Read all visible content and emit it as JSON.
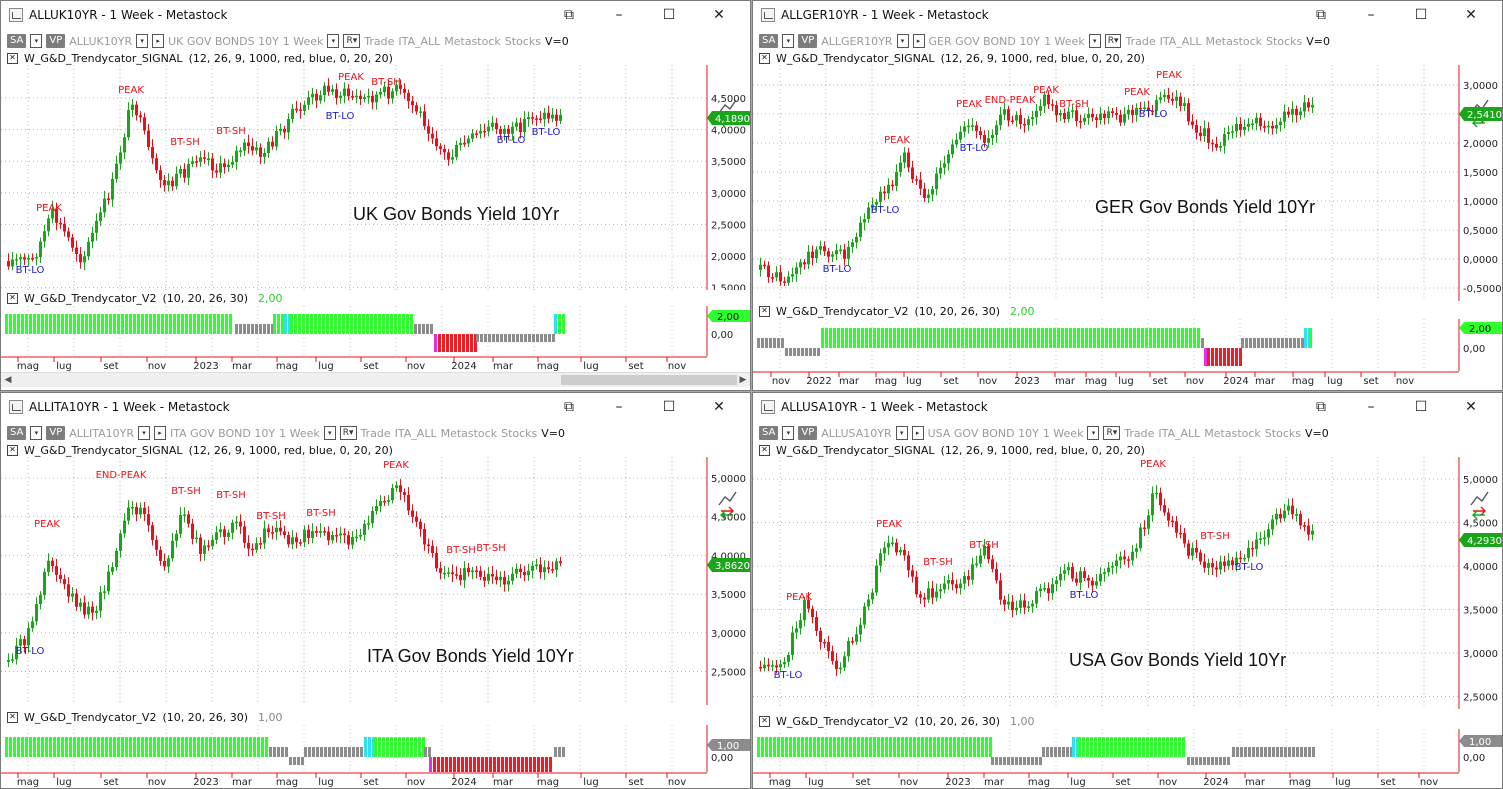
{
  "toolbar_common": {
    "sa": "SA",
    "vp": "VP",
    "period": "1 Week",
    "trade": "Trade",
    "list": "ITA_ALL",
    "metastock": "Metastock",
    "stocks": "Stocks",
    "v0": "V=0",
    "r_btn": "R▾"
  },
  "windows": [
    {
      "title": "ALLUK10YR - 1 Week - Metastock",
      "symbol": "ALLUK10YR",
      "security": "UK GOV BONDS 10Y",
      "indicator1": "W_G&D_Trendycator_SIGNAL",
      "indicator1_params": "(12, 26, 9, 1000, red, blue, 0, 20, 20)",
      "indicator2": "W_G&D_Trendycator_V2",
      "indicator2_params": "(10, 20, 26, 30)",
      "indicator2_value": "2,00",
      "label": "UK Gov Bonds Yield 10Yr",
      "last_price": "4,1890",
      "ind2_flag": "2,00",
      "ind2_zero": "0,00",
      "price_ticks": [
        "4,5000",
        "4,0000",
        "3,5000",
        "3,0000",
        "2,5000",
        "2,0000",
        "1,5000"
      ],
      "x_labels": [
        "mag",
        "lug",
        "set",
        "nov",
        "2023",
        "mar",
        "mag",
        "lug",
        "set",
        "nov",
        "2024",
        "mar",
        "mag",
        "lug",
        "set",
        "nov"
      ],
      "signals": [
        "PEAK",
        "PEAK",
        "BT-SH",
        "BT-SH",
        "PEAK",
        "BT-SH",
        "BT-LO",
        "BT-LO",
        "BT-LO",
        "BT-LO"
      ]
    },
    {
      "title": "ALLGER10YR - 1 Week - Metastock",
      "symbol": "ALLGER10YR",
      "security": "GER GOV BOND 10Y",
      "indicator1": "W_G&D_Trendycator_SIGNAL",
      "indicator1_params": "(12, 26, 9, 1000, red, blue, 0, 20, 20)",
      "indicator2": "W_G&D_Trendycator_V2",
      "indicator2_params": "(10, 20, 26, 30)",
      "indicator2_value": "2,00",
      "label": "GER Gov Bonds Yield 10Yr",
      "last_price": "2,5410",
      "ind2_flag": "2,00",
      "ind2_zero": "0,00",
      "price_ticks": [
        "3,0000",
        "2,5000",
        "2,0000",
        "1,5000",
        "1,0000",
        "0,5000",
        "0,0000",
        "-0,5000"
      ],
      "x_labels": [
        "nov",
        "2022",
        "mar",
        "mag",
        "lug",
        "set",
        "nov",
        "2023",
        "mar",
        "mag",
        "lug",
        "set",
        "nov",
        "2024",
        "mar",
        "mag",
        "lug",
        "set",
        "nov"
      ],
      "signals": [
        "PEAK",
        "PEAK",
        "END-PEAK",
        "PEAK",
        "BT-SH",
        "PEAK",
        "PEAK",
        "BT-LO",
        "BT-LO",
        "BT-LO",
        "BT-LO"
      ]
    },
    {
      "title": "ALLITA10YR - 1 Week - Metastock",
      "symbol": "ALLITA10YR",
      "security": "ITA GOV BOND 10Y",
      "indicator1": "W_G&D_Trendycator_SIGNAL",
      "indicator1_params": "(12, 26, 9, 1000, red, blue, 0, 20, 20)",
      "indicator2": "W_G&D_Trendycator_V2",
      "indicator2_params": "(10, 20, 26, 30)",
      "indicator2_value": "1,00",
      "label": "ITA Gov Bonds Yield 10Yr",
      "last_price": "3,8620",
      "ind2_flag": "1,00",
      "ind2_zero": "0,00",
      "price_ticks": [
        "5,0000",
        "4,5000",
        "4,0000",
        "3,5000",
        "3,0000",
        "2,5000"
      ],
      "x_labels": [
        "mag",
        "lug",
        "set",
        "nov",
        "2023",
        "mar",
        "mag",
        "lug",
        "set",
        "nov",
        "2024",
        "mar",
        "mag",
        "lug",
        "set",
        "nov"
      ],
      "signals": [
        "PEAK",
        "END-PEAK",
        "BT-SH",
        "BT-SH",
        "BT-SH",
        "BT-SH",
        "PEAK",
        "BT-SH",
        "BT-SH",
        "BT-LO"
      ]
    },
    {
      "title": "ALLUSA10YR - 1 Week - Metastock",
      "symbol": "ALLUSA10YR",
      "security": "USA GOV BOND 10Y",
      "indicator1": "W_G&D_Trendycator_SIGNAL",
      "indicator1_params": "(12, 26, 9, 1000, red, blue, 0, 20, 20)",
      "indicator2": "W_G&D_Trendycator_V2",
      "indicator2_params": "(10, 20, 26, 30)",
      "indicator2_value": "1,00",
      "label": "USA Gov Bonds Yield 10Yr",
      "last_price": "4,2930",
      "ind2_flag": "1,00",
      "ind2_zero": "0,00",
      "price_ticks": [
        "5,0000",
        "4,5000",
        "4,0000",
        "3,5000",
        "3,0000",
        "2,5000"
      ],
      "x_labels": [
        "mag",
        "lug",
        "set",
        "nov",
        "2023",
        "mar",
        "mag",
        "lug",
        "set",
        "nov",
        "2024",
        "mar",
        "mag",
        "lug",
        "set",
        "nov"
      ],
      "signals": [
        "PEAK",
        "PEAK",
        "BT-SH",
        "BT-SH",
        "PEAK",
        "BT-SH",
        "BT-LO",
        "BT-LO",
        "BT-LO"
      ]
    }
  ],
  "colors": {
    "up": "#1aa51a",
    "down": "#e8101a",
    "peak": "#e8101a",
    "bt_lo": "#1a1acc",
    "bar_green": "#2dff2d",
    "bar_gray": "#8c8c8c",
    "bar_red": "#ee1c24",
    "bar_cyan": "#29e3ee",
    "bar_magenta": "#e62ee8",
    "axis_red": "#e8101a",
    "last_green": "#1aa51a",
    "last_gray": "#7d7d7d"
  },
  "icons": [
    "app-icon",
    "popout-icon",
    "minimize-icon",
    "maximize-icon",
    "close-icon",
    "corner-chart-icon",
    "dropdown-icon"
  ]
}
